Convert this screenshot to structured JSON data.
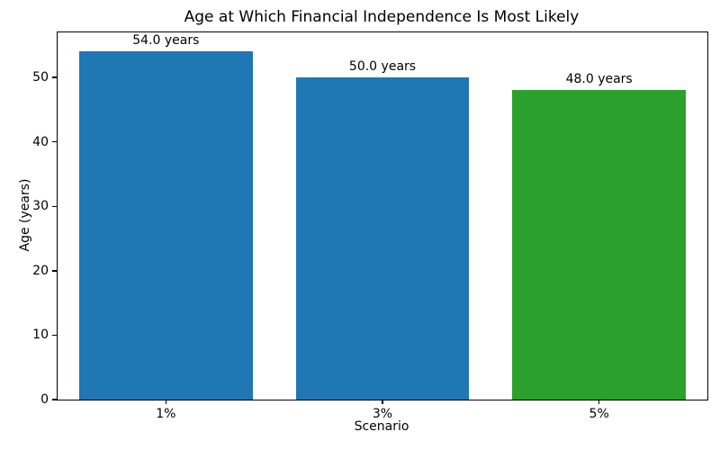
{
  "chart_data": {
    "type": "bar",
    "title": "Age at Which Financial Independence Is Most Likely",
    "xlabel": "Scenario",
    "ylabel": "Age (years)",
    "categories": [
      "1%",
      "3%",
      "5%"
    ],
    "values": [
      54.0,
      50.0,
      48.0
    ],
    "bar_labels": [
      "54.0 years",
      "50.0 years",
      "48.0 years"
    ],
    "bar_colors": [
      "#1f77b4",
      "#1f77b4",
      "#2ca02c"
    ],
    "ylim": [
      0,
      57
    ],
    "yticks": [
      0,
      10,
      20,
      30,
      40,
      50
    ],
    "bar_width_fraction": 0.8,
    "grid": false,
    "legend_visible": false,
    "colors": {
      "blue_bar": "#1f77b4",
      "green_bar": "#2ca02c",
      "spine": "#000000",
      "text": "#000000",
      "background": "#ffffff"
    }
  }
}
